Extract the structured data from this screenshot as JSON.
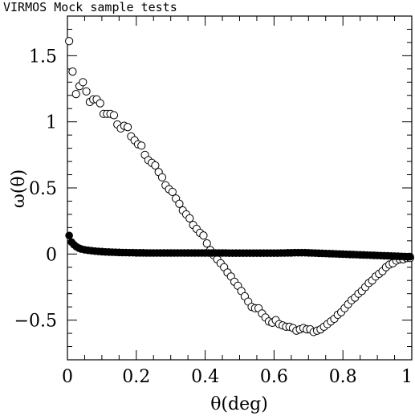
{
  "chart_data": {
    "type": "scatter",
    "title": "VIRMOS Mock sample tests",
    "xlabel": "θ(deg)",
    "ylabel": "ω(θ)",
    "xlim": [
      0,
      1
    ],
    "ylim": [
      -0.8,
      1.8
    ],
    "x_ticks": [
      0,
      0.2,
      0.4,
      0.6,
      0.8,
      1
    ],
    "x_tick_labels": [
      "0",
      "0.2",
      "0.4",
      "0.6",
      "0.8",
      "1"
    ],
    "y_ticks": [
      -0.5,
      0,
      0.5,
      1,
      1.5
    ],
    "y_tick_labels": [
      "−0.5",
      "0",
      "0.5",
      "1",
      "1.5"
    ],
    "grid": false,
    "series": [
      {
        "marker": "open-circle",
        "x": [
          0.005,
          0.015,
          0.025,
          0.035,
          0.045,
          0.055,
          0.065,
          0.075,
          0.085,
          0.095,
          0.105,
          0.115,
          0.125,
          0.135,
          0.145,
          0.155,
          0.165,
          0.175,
          0.185,
          0.195,
          0.205,
          0.215,
          0.225,
          0.235,
          0.245,
          0.255,
          0.265,
          0.275,
          0.285,
          0.295,
          0.305,
          0.315,
          0.325,
          0.335,
          0.345,
          0.355,
          0.365,
          0.375,
          0.385,
          0.395,
          0.405,
          0.415,
          0.425,
          0.435,
          0.445,
          0.455,
          0.465,
          0.475,
          0.485,
          0.495,
          0.505,
          0.515,
          0.525,
          0.535,
          0.545,
          0.555,
          0.565,
          0.575,
          0.585,
          0.595,
          0.605,
          0.615,
          0.625,
          0.635,
          0.645,
          0.655,
          0.665,
          0.675,
          0.685,
          0.695,
          0.705,
          0.715,
          0.725,
          0.735,
          0.745,
          0.755,
          0.765,
          0.775,
          0.785,
          0.795,
          0.805,
          0.815,
          0.825,
          0.835,
          0.845,
          0.855,
          0.865,
          0.875,
          0.885,
          0.895,
          0.905,
          0.915,
          0.925,
          0.935,
          0.945,
          0.955,
          0.965,
          0.975,
          0.985,
          0.995
        ],
        "y": [
          1.61,
          1.38,
          1.21,
          1.27,
          1.3,
          1.23,
          1.15,
          1.17,
          1.17,
          1.14,
          1.06,
          1.06,
          1.06,
          1.05,
          0.98,
          0.95,
          0.97,
          0.96,
          0.89,
          0.86,
          0.83,
          0.82,
          0.75,
          0.71,
          0.69,
          0.67,
          0.62,
          0.58,
          0.52,
          0.49,
          0.47,
          0.42,
          0.38,
          0.33,
          0.3,
          0.27,
          0.22,
          0.19,
          0.16,
          0.14,
          0.08,
          0.03,
          -0.01,
          -0.04,
          -0.07,
          -0.1,
          -0.14,
          -0.17,
          -0.21,
          -0.24,
          -0.28,
          -0.32,
          -0.36,
          -0.4,
          -0.41,
          -0.41,
          -0.45,
          -0.48,
          -0.51,
          -0.52,
          -0.5,
          -0.53,
          -0.54,
          -0.55,
          -0.55,
          -0.56,
          -0.58,
          -0.57,
          -0.56,
          -0.57,
          -0.57,
          -0.59,
          -0.58,
          -0.57,
          -0.55,
          -0.53,
          -0.51,
          -0.49,
          -0.46,
          -0.44,
          -0.41,
          -0.38,
          -0.35,
          -0.33,
          -0.3,
          -0.28,
          -0.25,
          -0.22,
          -0.2,
          -0.17,
          -0.15,
          -0.13,
          -0.1,
          -0.08,
          -0.07,
          -0.05,
          -0.04,
          -0.04,
          -0.03,
          -0.03
        ]
      },
      {
        "marker": "filled-circle",
        "x": [
          0.005,
          0.012,
          0.019,
          0.026,
          0.033,
          0.04,
          0.05,
          0.06,
          0.07,
          0.08,
          0.09,
          0.1,
          0.11,
          0.12,
          0.13,
          0.14,
          0.15,
          0.16,
          0.17,
          0.18,
          0.19,
          0.2,
          0.21,
          0.22,
          0.23,
          0.24,
          0.25,
          0.26,
          0.27,
          0.28,
          0.29,
          0.3,
          0.31,
          0.32,
          0.33,
          0.34,
          0.35,
          0.36,
          0.37,
          0.38,
          0.39,
          0.4,
          0.41,
          0.42,
          0.43,
          0.44,
          0.45,
          0.46,
          0.47,
          0.48,
          0.49,
          0.5,
          0.51,
          0.52,
          0.53,
          0.54,
          0.55,
          0.56,
          0.57,
          0.58,
          0.59,
          0.6,
          0.61,
          0.62,
          0.63,
          0.64,
          0.65,
          0.66,
          0.67,
          0.68,
          0.69,
          0.7,
          0.71,
          0.72,
          0.73,
          0.74,
          0.75,
          0.76,
          0.77,
          0.78,
          0.79,
          0.8,
          0.81,
          0.82,
          0.83,
          0.84,
          0.85,
          0.86,
          0.87,
          0.88,
          0.89,
          0.9,
          0.91,
          0.92,
          0.93,
          0.94,
          0.95,
          0.96,
          0.97,
          0.98,
          0.99,
          0.995
        ],
        "y": [
          0.14,
          0.09,
          0.07,
          0.055,
          0.045,
          0.038,
          0.032,
          0.028,
          0.025,
          0.022,
          0.02,
          0.018,
          0.016,
          0.015,
          0.014,
          0.013,
          0.012,
          0.011,
          0.011,
          0.01,
          0.01,
          0.009,
          0.009,
          0.009,
          0.008,
          0.008,
          0.008,
          0.008,
          0.008,
          0.008,
          0.008,
          0.008,
          0.008,
          0.008,
          0.008,
          0.008,
          0.008,
          0.008,
          0.008,
          0.008,
          0.008,
          0.008,
          0.008,
          0.008,
          0.008,
          0.008,
          0.008,
          0.008,
          0.007,
          0.007,
          0.007,
          0.007,
          0.007,
          0.007,
          0.007,
          0.007,
          0.007,
          0.007,
          0.007,
          0.007,
          0.007,
          0.007,
          0.007,
          0.008,
          0.008,
          0.009,
          0.009,
          0.01,
          0.01,
          0.01,
          0.01,
          0.009,
          0.008,
          0.007,
          0.006,
          0.005,
          0.004,
          0.003,
          0.002,
          0.001,
          0.0,
          -0.001,
          -0.002,
          -0.003,
          -0.004,
          -0.005,
          -0.006,
          -0.007,
          -0.008,
          -0.009,
          -0.01,
          -0.011,
          -0.012,
          -0.013,
          -0.014,
          -0.015,
          -0.016,
          -0.017,
          -0.018,
          -0.019,
          -0.02,
          -0.02
        ]
      }
    ]
  }
}
